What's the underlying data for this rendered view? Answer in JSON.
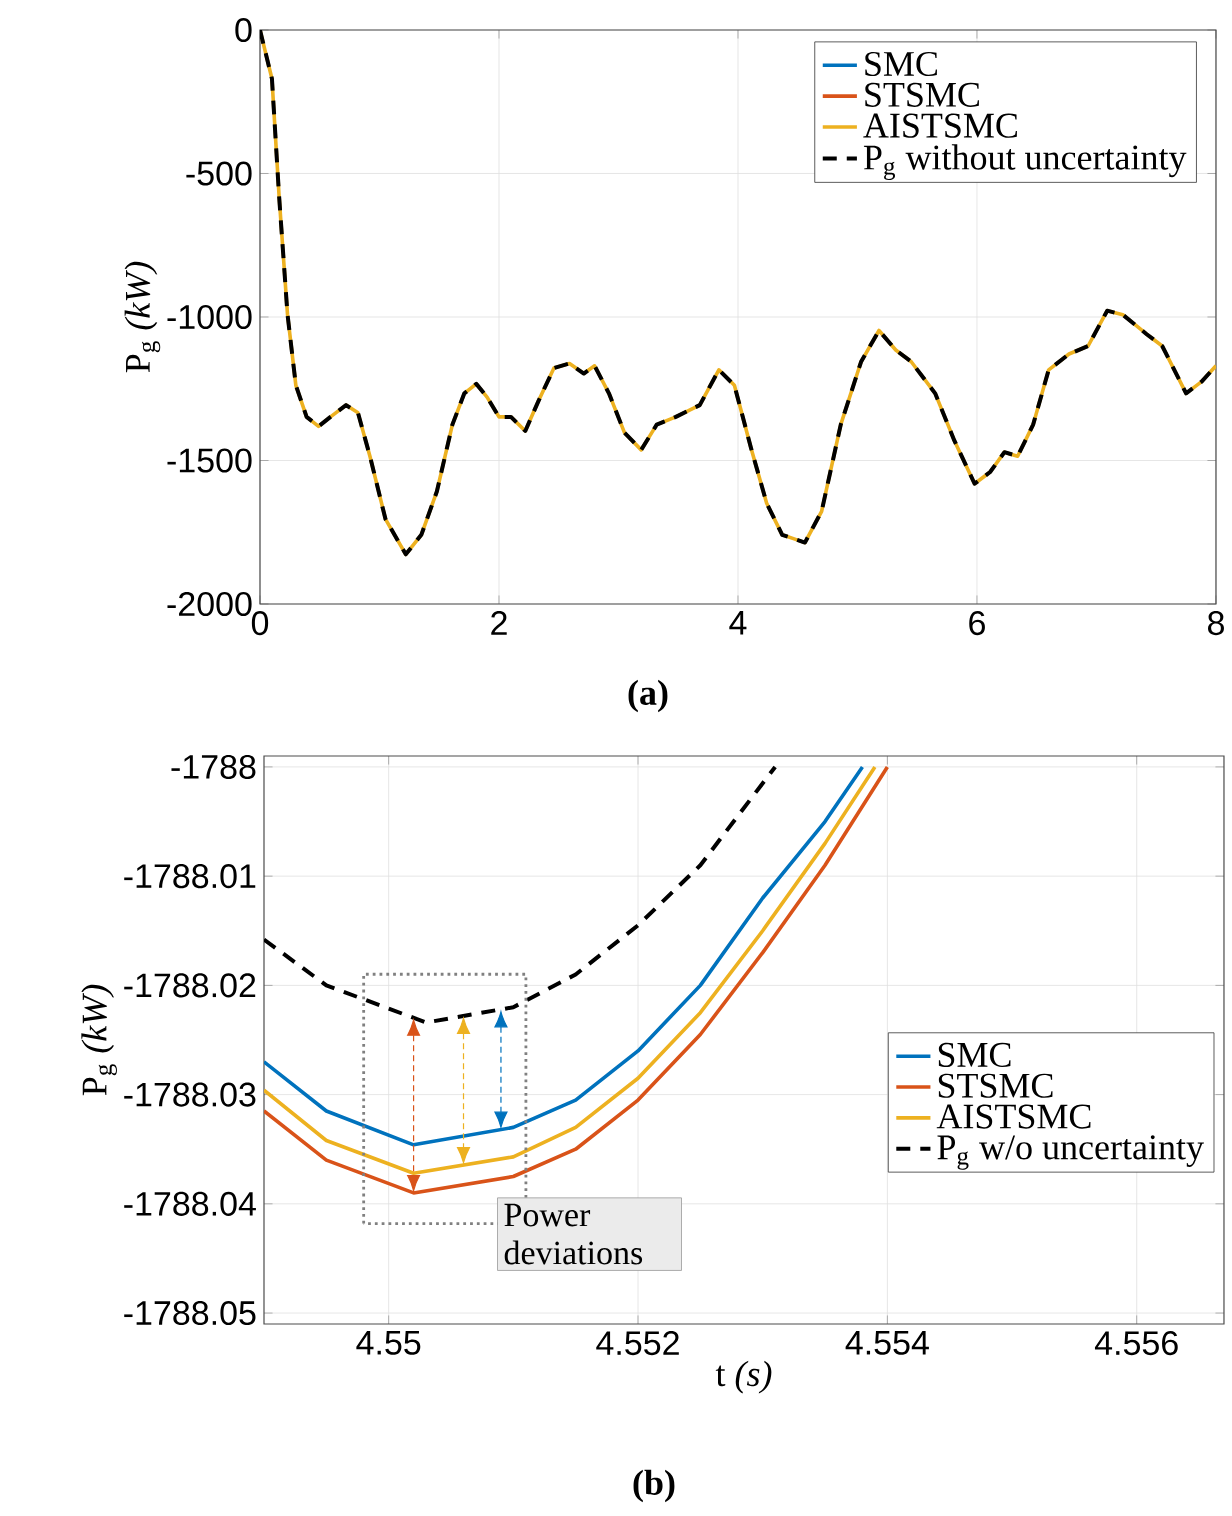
{
  "chart_data": [
    {
      "type": "line",
      "ylabel": "P$_{g}$ *(kW)*",
      "annotations": [
        "(a)"
      ],
      "x": [
        0,
        0.1,
        0.16,
        0.23,
        0.3,
        0.39,
        0.49,
        0.59,
        0.72,
        0.82,
        0.92,
        1.05,
        1.22,
        1.35,
        1.48,
        1.61,
        1.71,
        1.81,
        1.9,
        2.0,
        2.1,
        2.22,
        2.33,
        2.46,
        2.59,
        2.71,
        2.8,
        2.92,
        3.05,
        3.19,
        3.32,
        3.48,
        3.68,
        3.84,
        3.97,
        4.11,
        4.24,
        4.37,
        4.47,
        4.56,
        4.7,
        4.86,
        5.03,
        5.18,
        5.32,
        5.45,
        5.65,
        5.81,
        5.98,
        6.11,
        6.23,
        6.34,
        6.47,
        6.6,
        6.77,
        6.93,
        7.09,
        7.22,
        7.42,
        7.55,
        7.75,
        7.88,
        8.0
      ],
      "series": [
        {
          "name": "SMC",
          "color": "#0072bd",
          "line_style": "solid",
          "values": [
            null,
            null,
            null,
            null,
            null,
            null,
            null,
            null,
            null,
            null,
            null,
            null,
            null,
            null,
            null,
            null,
            null,
            null,
            null,
            null,
            null,
            null,
            null,
            null,
            null,
            null,
            null,
            null,
            null,
            null,
            null,
            null,
            null,
            null,
            null,
            null,
            null,
            null,
            null,
            null,
            null,
            null,
            null,
            null,
            null,
            null,
            null,
            null,
            null,
            null,
            null,
            null,
            null,
            null,
            null,
            null,
            null,
            null,
            null,
            null,
            null,
            null,
            null
          ]
        },
        {
          "name": "STSMC",
          "color": "#d95319",
          "line_style": "solid",
          "values": [
            null,
            null,
            null,
            null,
            null,
            null,
            null,
            null,
            null,
            null,
            null,
            null,
            null,
            null,
            null,
            null,
            null,
            null,
            null,
            null,
            null,
            null,
            null,
            null,
            null,
            null,
            null,
            null,
            null,
            null,
            null,
            null,
            null,
            null,
            null,
            null,
            null,
            null,
            null,
            null,
            null,
            null,
            null,
            null,
            null,
            null,
            null,
            null,
            null,
            null,
            null,
            null,
            null,
            null,
            null,
            null,
            null,
            null,
            null,
            null,
            null,
            null,
            null
          ]
        },
        {
          "name": "AISTSMC",
          "color": "#edb120",
          "line_style": "solid",
          "values": [
            0,
            -170,
            -580,
            -990,
            -1238,
            -1348,
            -1381,
            -1348,
            -1307,
            -1334,
            -1485,
            -1704,
            -1827,
            -1759,
            -1608,
            -1375,
            -1266,
            -1233,
            -1279,
            -1348,
            -1348,
            -1397,
            -1293,
            -1178,
            -1162,
            -1197,
            -1170,
            -1266,
            -1403,
            -1463,
            -1375,
            -1348,
            -1307,
            -1184,
            -1238,
            -1458,
            -1649,
            -1759,
            -1773,
            -1786,
            -1677,
            -1375,
            -1156,
            -1047,
            -1115,
            -1156,
            -1266,
            -1430,
            -1581,
            -1540,
            -1471,
            -1485,
            -1375,
            -1184,
            -1129,
            -1101,
            -978,
            -992,
            -1060,
            -1101,
            -1266,
            -1225,
            -1170
          ]
        },
        {
          "name": "P$_{g}$ without uncertainty",
          "color": "#000000",
          "line_style": "dashed",
          "values": [
            0,
            -170,
            -580,
            -990,
            -1238,
            -1348,
            -1381,
            -1348,
            -1307,
            -1334,
            -1485,
            -1704,
            -1827,
            -1759,
            -1608,
            -1375,
            -1266,
            -1233,
            -1279,
            -1348,
            -1348,
            -1397,
            -1293,
            -1178,
            -1162,
            -1197,
            -1170,
            -1266,
            -1403,
            -1463,
            -1375,
            -1348,
            -1307,
            -1184,
            -1238,
            -1458,
            -1649,
            -1759,
            -1773,
            -1786,
            -1677,
            -1375,
            -1156,
            -1047,
            -1115,
            -1156,
            -1266,
            -1430,
            -1581,
            -1540,
            -1471,
            -1485,
            -1375,
            -1184,
            -1129,
            -1101,
            -978,
            -992,
            -1060,
            -1101,
            -1266,
            -1225,
            -1170
          ]
        }
      ],
      "xlim": [
        0,
        8
      ],
      "ylim": [
        -2000,
        0
      ],
      "xticks": [
        0,
        2,
        4,
        6,
        8
      ],
      "yticks": [
        -2000,
        -1500,
        -1000,
        -500,
        0
      ],
      "grid": true,
      "legend": "top right"
    },
    {
      "type": "line",
      "xlabel": "t *(s)*",
      "ylabel": "P$_{g}$ *(kW)*",
      "annotations": [
        "(b)",
        "Power deviations"
      ],
      "series": [
        {
          "name": "SMC",
          "color": "#0072bd",
          "line_style": "solid",
          "x": [
            4.549,
            4.5495,
            4.5502,
            4.551,
            4.5515,
            4.552,
            4.5525,
            4.553,
            4.5535,
            4.5538
          ],
          "values": [
            -1788.027,
            -1788.0315,
            -1788.0346,
            -1788.033,
            -1788.0305,
            -1788.026,
            -1788.02,
            -1788.012,
            -1788.005,
            -1788.0
          ]
        },
        {
          "name": "STSMC",
          "color": "#d95319",
          "line_style": "solid",
          "x": [
            4.549,
            4.5495,
            4.5502,
            4.551,
            4.5515,
            4.552,
            4.5525,
            4.553,
            4.5535,
            4.554
          ],
          "values": [
            -1788.0315,
            -1788.036,
            -1788.039,
            -1788.0375,
            -1788.035,
            -1788.0305,
            -1788.0245,
            -1788.017,
            -1788.009,
            -1788.0
          ]
        },
        {
          "name": "AISTSMC",
          "color": "#edb120",
          "line_style": "solid",
          "x": [
            4.549,
            4.5495,
            4.5502,
            4.551,
            4.5515,
            4.552,
            4.5525,
            4.553,
            4.5535,
            4.5539
          ],
          "values": [
            -1788.0296,
            -1788.0342,
            -1788.0372,
            -1788.0357,
            -1788.033,
            -1788.0285,
            -1788.0225,
            -1788.015,
            -1788.007,
            -1788.0
          ]
        },
        {
          "name": "P$_{g}$ w/o uncertainty",
          "color": "#000000",
          "line_style": "dashed",
          "x": [
            4.549,
            4.5495,
            4.5503,
            4.551,
            4.5515,
            4.552,
            4.5525,
            4.5531
          ],
          "values": [
            -1788.0158,
            -1788.02,
            -1788.0234,
            -1788.022,
            -1788.019,
            -1788.0145,
            -1788.009,
            -1788.0
          ]
        }
      ],
      "xlim": [
        4.549,
        4.5567
      ],
      "ylim": [
        -1788.051,
        -1787.999
      ],
      "xticks": [
        4.55,
        4.552,
        4.554,
        4.556
      ],
      "yticks": [
        -1788.05,
        -1788.04,
        -1788.03,
        -1788.02,
        -1788.01,
        -1788
      ],
      "grid": true,
      "legend": "right"
    }
  ]
}
